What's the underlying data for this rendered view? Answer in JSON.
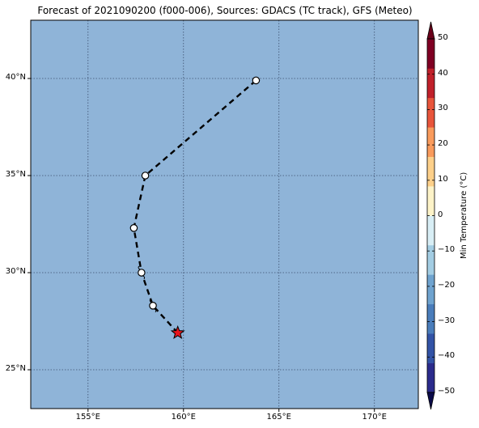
{
  "title": "Forecast of 2021090200 (f000-006), Sources: GDACS (TC track), GFS (Meteo)",
  "map": {
    "lon_range": [
      152,
      172.3
    ],
    "lat_range": [
      23,
      43
    ],
    "ocean_color": "#8fb4d8",
    "grid": true,
    "lat_ticks": [
      {
        "value": 40,
        "label": "40°N"
      },
      {
        "value": 35,
        "label": "35°N"
      },
      {
        "value": 30,
        "label": "30°N"
      },
      {
        "value": 25,
        "label": "25°N"
      }
    ],
    "lon_ticks": [
      {
        "value": 155,
        "label": "155°E"
      },
      {
        "value": 160,
        "label": "160°E"
      },
      {
        "value": 165,
        "label": "165°E"
      },
      {
        "value": 170,
        "label": "170°E"
      }
    ]
  },
  "track": {
    "line_style": "dashed",
    "points": [
      {
        "lon": 159.7,
        "lat": 26.9,
        "marker": "star",
        "color": "#e8141d"
      },
      {
        "lon": 158.4,
        "lat": 28.3,
        "marker": "circle-tropical"
      },
      {
        "lon": 157.8,
        "lat": 30.0,
        "marker": "circle-tropical"
      },
      {
        "lon": 157.4,
        "lat": 32.3,
        "marker": "circle"
      },
      {
        "lon": 158.0,
        "lat": 35.0,
        "marker": "circle"
      },
      {
        "lon": 163.8,
        "lat": 39.9,
        "marker": "circle"
      }
    ]
  },
  "colorbar": {
    "label": "Min Temperature (°C)",
    "min": -50,
    "max": 50,
    "ticks": [
      "50",
      "40",
      "30",
      "20",
      "10",
      "0",
      "−10",
      "−20",
      "−30",
      "−40",
      "−50"
    ],
    "colors": [
      "#2b2b8c",
      "#3253a6",
      "#4a7dbb",
      "#6fa3cf",
      "#a3cde3",
      "#d8eef5",
      "#fdf3c8",
      "#fdd08a",
      "#f99b5c",
      "#e8553b",
      "#c0202a",
      "#7f0023"
    ],
    "under_color": "#0b0b4a",
    "over_color": "#6a001a"
  }
}
